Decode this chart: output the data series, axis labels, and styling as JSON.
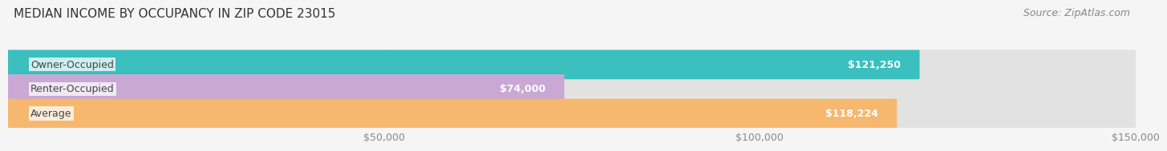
{
  "title": "MEDIAN INCOME BY OCCUPANCY IN ZIP CODE 23015",
  "source": "Source: ZipAtlas.com",
  "categories": [
    "Owner-Occupied",
    "Renter-Occupied",
    "Average"
  ],
  "values": [
    121250,
    74000,
    118224
  ],
  "bar_colors": [
    "#3bbfbf",
    "#c9a8d4",
    "#f5b86e"
  ],
  "bar_labels": [
    "$121,250",
    "$74,000",
    "$118,224"
  ],
  "xlim": [
    0,
    150000
  ],
  "xticks": [
    0,
    50000,
    100000,
    150000
  ],
  "xticklabels": [
    "",
    "$50,000",
    "$100,000",
    "$150,000"
  ],
  "background_color": "#f5f5f5",
  "bar_bg_color": "#e2e2e2",
  "title_fontsize": 11,
  "source_fontsize": 9,
  "label_fontsize": 9,
  "tick_fontsize": 9
}
